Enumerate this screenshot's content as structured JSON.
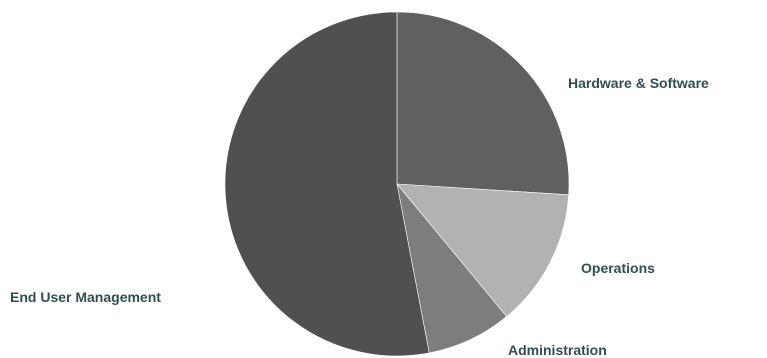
{
  "chart_data": {
    "type": "pie",
    "title": "",
    "start_angle_deg": 0,
    "direction": "clockwise",
    "slices": [
      {
        "label": "Hardware & Software",
        "value": 26,
        "color": "#606060"
      },
      {
        "label": "Operations",
        "value": 13,
        "color": "#b2b2b2"
      },
      {
        "label": "Administration",
        "value": 8,
        "color": "#7d7d7d"
      },
      {
        "label": "End User Management",
        "value": 53,
        "color": "#505050"
      }
    ],
    "label_color": "#2e4e55",
    "edge_color": "#ffffff"
  }
}
